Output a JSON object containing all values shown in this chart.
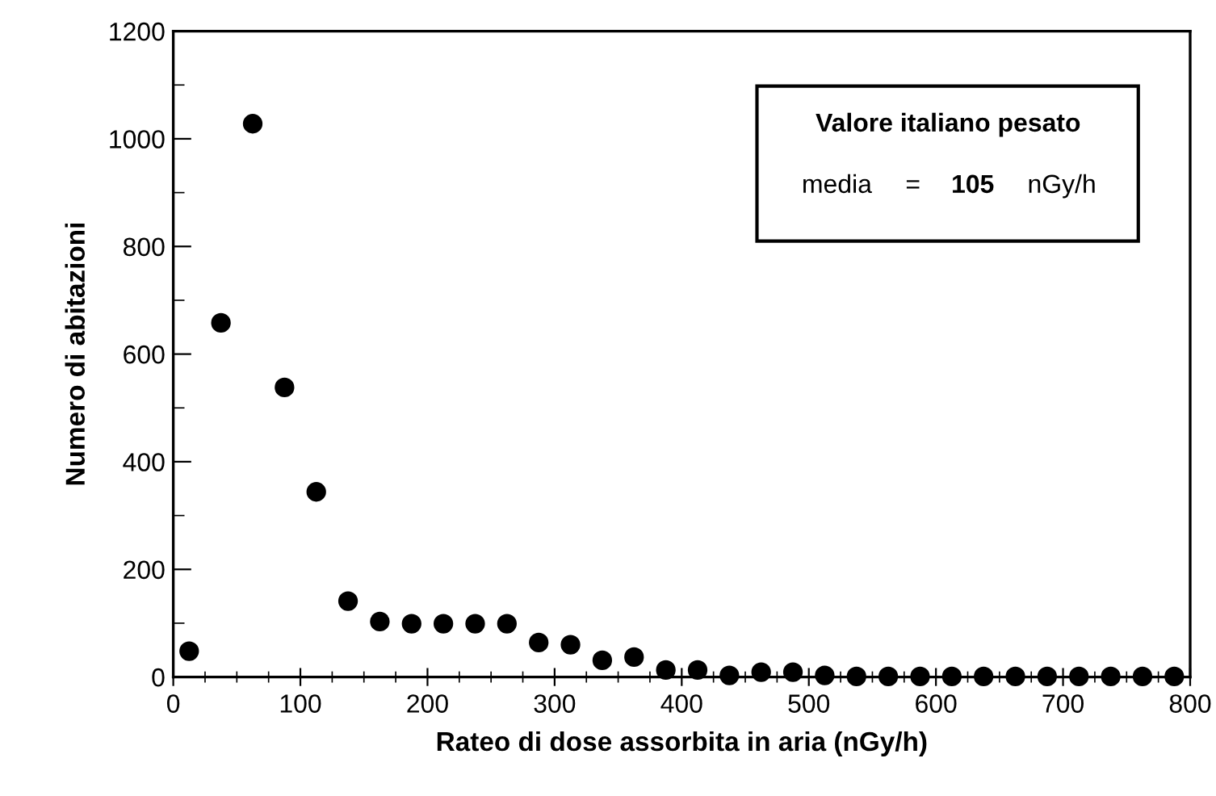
{
  "chart_data": {
    "type": "scatter",
    "xlabel": "Rateo di dose assorbita in aria (nGy/h)",
    "ylabel": "Numero di abitazioni",
    "x": [
      12.5,
      37.5,
      62.5,
      87.5,
      112.5,
      137.5,
      162.5,
      187.5,
      212.5,
      237.5,
      262.5,
      287.5,
      312.5,
      337.5,
      362.5,
      387.5,
      412.5,
      437.5,
      462.5,
      487.5,
      512.5,
      537.5,
      562.5,
      587.5,
      612.5,
      637.5,
      662.5,
      687.5,
      712.5,
      737.5,
      762.5,
      787.5
    ],
    "values": [
      48,
      658,
      1028,
      538,
      344,
      141,
      103,
      99,
      99,
      99,
      99,
      64,
      60,
      31,
      37,
      13,
      13,
      3,
      9,
      9,
      3,
      1,
      1,
      1,
      1,
      1,
      1,
      1,
      1,
      1,
      1,
      1
    ],
    "color": "#000000",
    "marker": "circle",
    "xlim": [
      0,
      800
    ],
    "xticks": [
      0,
      100,
      200,
      300,
      400,
      500,
      600,
      700,
      800
    ],
    "ylim": [
      0,
      1200
    ],
    "yticks": [
      0,
      200,
      400,
      600,
      800,
      1000,
      1200
    ],
    "grid": false,
    "legend": false,
    "annotations": [
      "Valore italiano pesato",
      "media",
      "=",
      "105",
      "nGy/h"
    ]
  }
}
